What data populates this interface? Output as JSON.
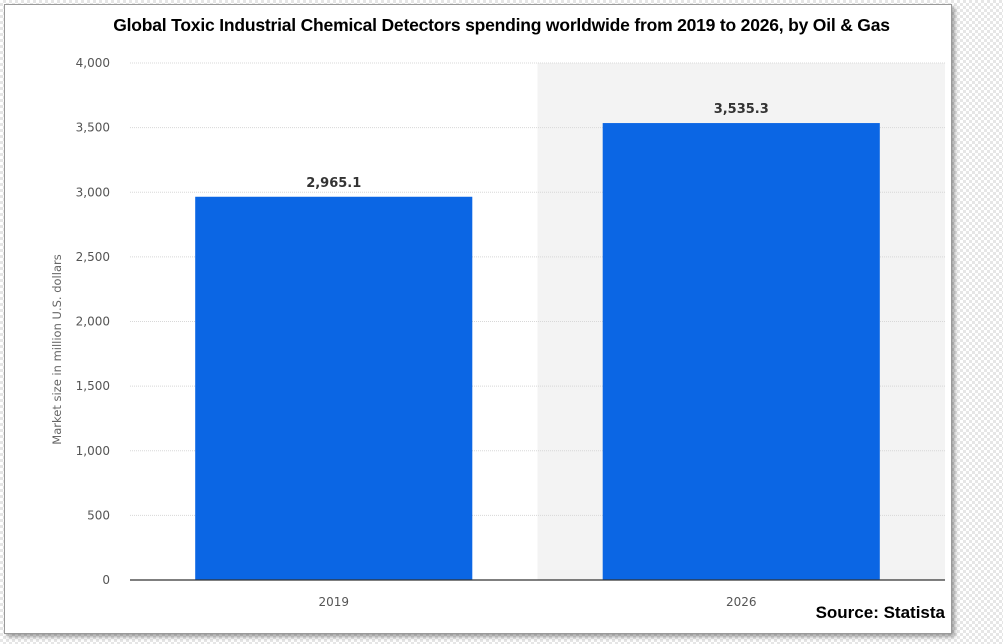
{
  "chart_data": {
    "type": "bar",
    "title": "Global Toxic Industrial Chemical Detectors spending worldwide from 2019 to 2026, by Oil & Gas",
    "ylabel": "Market size in million U.S. dollars",
    "xlabel": "",
    "categories": [
      "2019",
      "2026"
    ],
    "values": [
      2965.1,
      3535.3
    ],
    "value_labels": [
      "2,965.1",
      "3,535.3"
    ],
    "ylim": [
      0,
      4000
    ],
    "yticks": [
      0,
      500,
      1000,
      1500,
      2000,
      2500,
      3000,
      3500,
      4000
    ],
    "ytick_labels": [
      "0",
      "500",
      "1,000",
      "1,500",
      "2,000",
      "2,500",
      "3,000",
      "3,500",
      "4,000"
    ],
    "grid": true,
    "shaded_category": "2026",
    "bar_color": "#0b66e4",
    "shade_color": "#f3f3f3",
    "grid_color": "#d8d8d8"
  },
  "source": "Source: Statista"
}
